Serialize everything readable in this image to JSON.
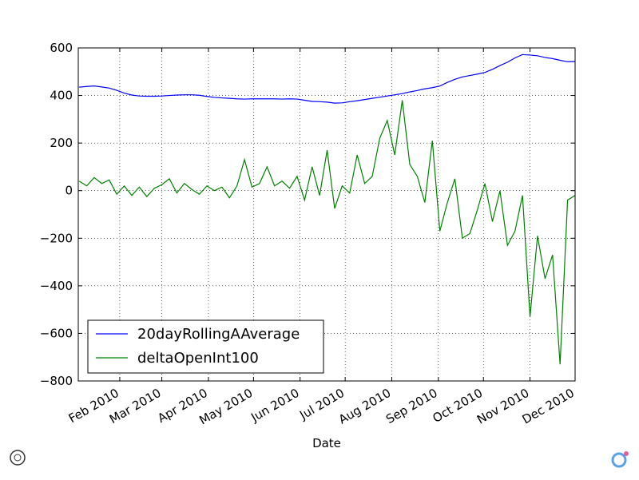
{
  "chart_data": {
    "type": "line",
    "x_label": "Date",
    "x": [
      5,
      10,
      15,
      20,
      25,
      30,
      35,
      40,
      45,
      50,
      55,
      60,
      65,
      70,
      75,
      80,
      85,
      90,
      95,
      100,
      105,
      110,
      115,
      120,
      125,
      130,
      135,
      140,
      145,
      150,
      155,
      160,
      165,
      170,
      175,
      180,
      185,
      190,
      195,
      200,
      205,
      210,
      215,
      220,
      225,
      230,
      235,
      240,
      245,
      250,
      255,
      260,
      265,
      270,
      275,
      280,
      285,
      290,
      295,
      300,
      305,
      310,
      315,
      320,
      325,
      330,
      335
    ],
    "series": [
      {
        "name": "20dayRollingAAverage",
        "color": "#0000ff",
        "values": [
          435,
          438,
          440,
          436,
          431,
          422,
          410,
          402,
          398,
          397,
          397,
          398,
          400,
          402,
          403,
          403,
          401,
          396,
          392,
          390,
          388,
          386,
          385,
          386,
          386,
          386,
          386,
          385,
          386,
          385,
          380,
          375,
          374,
          372,
          368,
          369,
          374,
          378,
          383,
          388,
          393,
          398,
          403,
          408,
          415,
          421,
          428,
          433,
          440,
          455,
          468,
          478,
          484,
          490,
          497,
          510,
          526,
          540,
          558,
          572,
          570,
          567,
          560,
          555,
          548,
          542,
          543
        ]
      },
      {
        "name": "deltaOpenInt100",
        "color": "#008000",
        "values": [
          40,
          20,
          55,
          30,
          45,
          -15,
          20,
          -20,
          15,
          -25,
          10,
          25,
          50,
          -10,
          30,
          5,
          -15,
          20,
          0,
          15,
          -30,
          20,
          130,
          15,
          30,
          100,
          20,
          40,
          10,
          60,
          -40,
          100,
          -20,
          170,
          -75,
          20,
          -10,
          150,
          30,
          60,
          220,
          295,
          150,
          380,
          110,
          60,
          -50,
          210,
          -170,
          -50,
          50,
          -200,
          -180,
          -80,
          30,
          -130,
          0,
          -230,
          -170,
          -20,
          -530,
          -190,
          -370,
          -270,
          -730,
          -40,
          -20
        ]
      }
    ],
    "xlim": [
      4.4,
      335
    ],
    "xticks": [
      {
        "value": 32,
        "label": "Feb 2010"
      },
      {
        "value": 60,
        "label": "Mar 2010"
      },
      {
        "value": 91,
        "label": "Apr 2010"
      },
      {
        "value": 121,
        "label": "May 2010"
      },
      {
        "value": 152,
        "label": "Jun 2010"
      },
      {
        "value": 182,
        "label": "Jul 2010"
      },
      {
        "value": 213,
        "label": "Aug 2010"
      },
      {
        "value": 244,
        "label": "Sep 2010"
      },
      {
        "value": 274,
        "label": "Oct 2010"
      },
      {
        "value": 305,
        "label": "Nov 2010"
      },
      {
        "value": 335,
        "label": "Dec 2010"
      }
    ],
    "ylim": [
      -800,
      600
    ],
    "yticks": [
      {
        "value": -800,
        "label": "−800"
      },
      {
        "value": -600,
        "label": "−600"
      },
      {
        "value": -400,
        "label": "−400"
      },
      {
        "value": -200,
        "label": "−200"
      },
      0,
      200,
      400,
      600
    ],
    "grid": true,
    "legend": "lower left"
  }
}
